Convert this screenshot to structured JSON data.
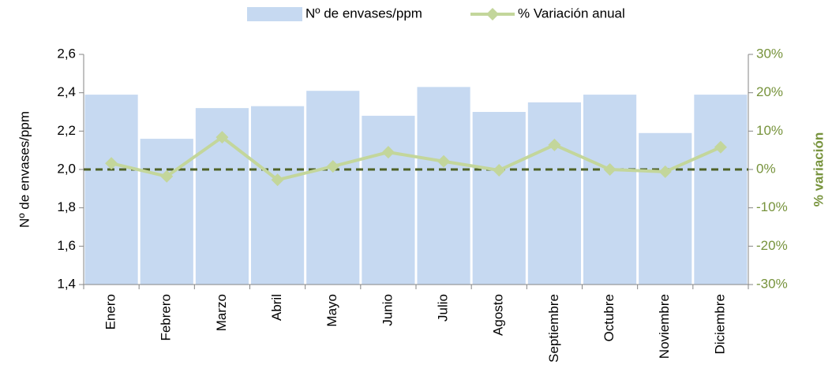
{
  "chart_data": {
    "type": "bar_line",
    "categories": [
      "Enero",
      "Febrero",
      "Marzo",
      "Abril",
      "Mayo",
      "Junio",
      "Julio",
      "Agosto",
      "Septiembre",
      "Octubre",
      "Noviembre",
      "Diciembre"
    ],
    "series": [
      {
        "name": "Nº de envases/ppm",
        "type": "bar",
        "color": "#c6d9f1",
        "values": [
          2.39,
          2.16,
          2.32,
          2.33,
          2.41,
          2.28,
          2.43,
          2.3,
          2.35,
          2.39,
          2.19,
          2.39
        ]
      },
      {
        "name": "% Variación anual",
        "type": "line",
        "axis": "y2",
        "color": "#c3d69b",
        "values": [
          1.6,
          -1.8,
          8.4,
          -2.7,
          0.8,
          4.5,
          2.1,
          -0.2,
          6.4,
          0,
          -0.6,
          5.8
        ]
      }
    ],
    "ylabel": "Nº de envases/ppm",
    "y2label": "% variación",
    "ylim": [
      1.4,
      2.6
    ],
    "yticks": [
      {
        "value": 1.4,
        "label": "1,4"
      },
      {
        "value": 1.6,
        "label": "1,6"
      },
      {
        "value": 1.8,
        "label": "1,8"
      },
      {
        "value": 2.0,
        "label": "2,0"
      },
      {
        "value": 2.2,
        "label": "2,2"
      },
      {
        "value": 2.4,
        "label": "2,4"
      },
      {
        "value": 2.6,
        "label": "2,6"
      }
    ],
    "y2lim": [
      -30,
      30
    ],
    "y2ticks": [
      {
        "value": -30,
        "label": "-30%"
      },
      {
        "value": -20,
        "label": "-20%"
      },
      {
        "value": -10,
        "label": "-10%"
      },
      {
        "value": 0,
        "label": "0%"
      },
      {
        "value": 10,
        "label": "10%"
      },
      {
        "value": 20,
        "label": "20%"
      },
      {
        "value": 30,
        "label": "30%"
      }
    ],
    "y2_color": "#77933c",
    "reference_line": {
      "axis": "y2",
      "value": 0,
      "color": "#4f6228"
    },
    "legend": "top"
  }
}
